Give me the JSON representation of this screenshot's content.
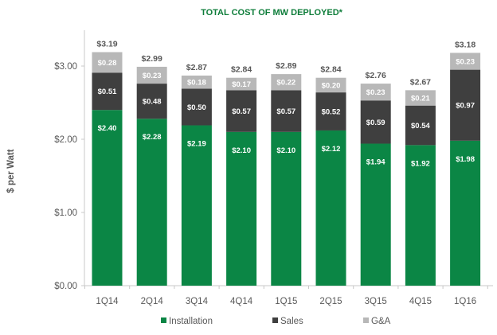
{
  "chart_data": {
    "type": "bar",
    "stacked": true,
    "title": "TOTAL COST OF MW DEPLOYED*",
    "xlabel": "",
    "ylabel": "$ per Watt",
    "ylim": [
      0,
      3.0
    ],
    "yticks": [
      0,
      1,
      2,
      3
    ],
    "ytick_labels": [
      "$0.00",
      "$1.00",
      "$2.00",
      "$3.00"
    ],
    "grid": false,
    "legend_position": "bottom",
    "categories": [
      "1Q14",
      "2Q14",
      "3Q14",
      "4Q14",
      "1Q15",
      "2Q15",
      "3Q15",
      "4Q15",
      "1Q16"
    ],
    "series": [
      {
        "name": "Installation",
        "color": "#0b8645",
        "values": [
          2.4,
          2.28,
          2.19,
          2.1,
          2.1,
          2.12,
          1.94,
          1.92,
          1.98
        ]
      },
      {
        "name": "Sales",
        "color": "#3f3f3f",
        "values": [
          0.51,
          0.48,
          0.5,
          0.57,
          0.57,
          0.52,
          0.59,
          0.54,
          0.97
        ]
      },
      {
        "name": "G&A",
        "color": "#b8b8b8",
        "values": [
          0.28,
          0.23,
          0.18,
          0.17,
          0.22,
          0.2,
          0.23,
          0.21,
          0.23
        ]
      }
    ],
    "totals": [
      3.19,
      2.99,
      2.87,
      2.84,
      2.89,
      2.84,
      2.76,
      2.67,
      3.18
    ]
  }
}
